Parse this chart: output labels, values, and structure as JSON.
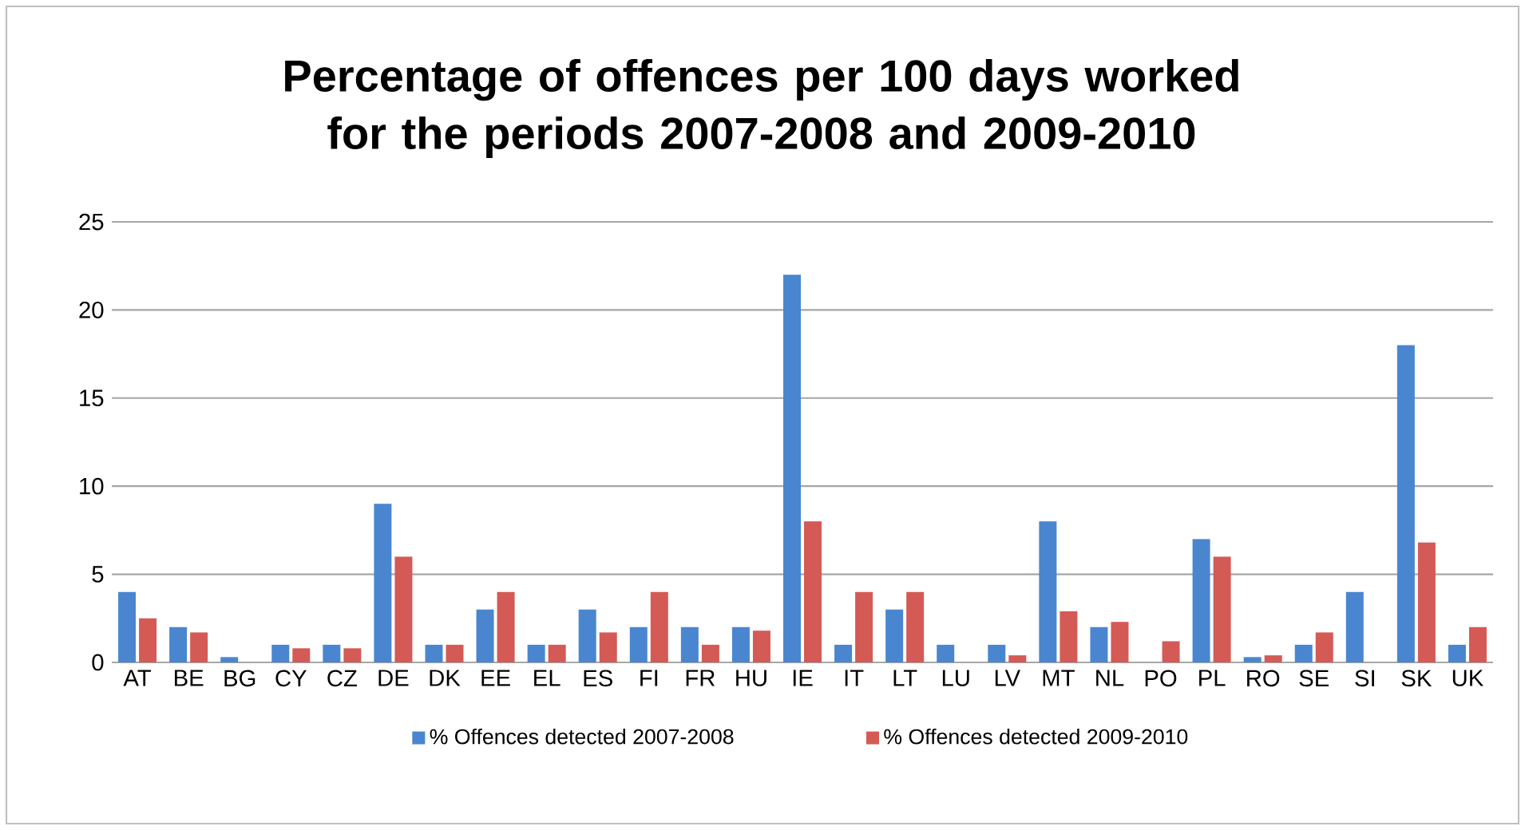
{
  "chart_data": {
    "type": "bar",
    "title": "Percentage of offences per 100 days worked for the periods 2007-2008 and 2009-2010",
    "categories": [
      "AT",
      "BE",
      "BG",
      "CY",
      "CZ",
      "DE",
      "DK",
      "EE",
      "EL",
      "ES",
      "FI",
      "FR",
      "HU",
      "IE",
      "IT",
      "LT",
      "LU",
      "LV",
      "MT",
      "NL",
      "PO",
      "PL",
      "RO",
      "SE",
      "SI",
      "SK",
      "UK"
    ],
    "series": [
      {
        "name": "% Offences detected 2007-2008",
        "color": "#4a86d0",
        "values": [
          4,
          2,
          0.3,
          1,
          1,
          9,
          1,
          3,
          1,
          3,
          2,
          2,
          2,
          22,
          1,
          3,
          1,
          1,
          8,
          2,
          null,
          7,
          0.3,
          1,
          4,
          18,
          1
        ]
      },
      {
        "name": "% Offences detected 2009-2010",
        "color": "#d45a55",
        "values": [
          2.5,
          1.7,
          null,
          0.8,
          0.8,
          6,
          1,
          4,
          1,
          1.7,
          4,
          1,
          1.8,
          8,
          4,
          4,
          null,
          0.4,
          2.9,
          2.3,
          1.2,
          6,
          0.4,
          1.7,
          null,
          6.8,
          2
        ]
      }
    ],
    "ylim": [
      0,
      25
    ],
    "yticks": [
      0,
      5,
      10,
      15,
      20,
      25
    ],
    "grid": "y",
    "legend": "bottom"
  }
}
